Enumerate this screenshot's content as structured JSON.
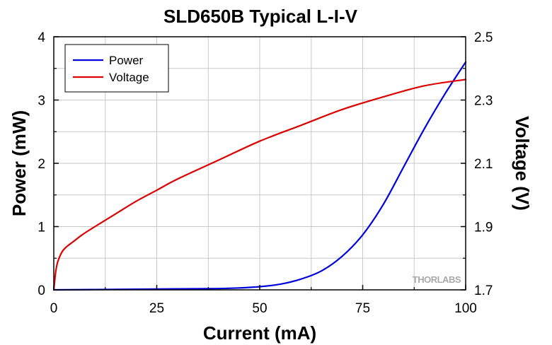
{
  "chart_data": {
    "type": "line",
    "title": "SLD650B Typical L-I-V",
    "xlabel": "Current (mA)",
    "ylabel_left": "Power (mW)",
    "ylabel_right": "Voltage (V)",
    "xlim": [
      0,
      100
    ],
    "ylim_left": [
      0,
      4
    ],
    "ylim_right": [
      1.7,
      2.5
    ],
    "x_ticks": [
      "0",
      "25",
      "50",
      "75",
      "100"
    ],
    "y_left_ticks": [
      "0",
      "1",
      "2",
      "3",
      "4"
    ],
    "y_right_ticks": [
      "1.7",
      "1.9",
      "2.1",
      "2.3",
      "2.5"
    ],
    "grid": true,
    "legend_position": "top-left",
    "series": [
      {
        "name": "Power",
        "axis": "left",
        "color": "#0000dd",
        "x": [
          0,
          10,
          20,
          30,
          40,
          45,
          50,
          55,
          60,
          65,
          70,
          75,
          80,
          85,
          90,
          95,
          100
        ],
        "y": [
          0,
          0.005,
          0.01,
          0.015,
          0.02,
          0.03,
          0.05,
          0.09,
          0.17,
          0.3,
          0.53,
          0.87,
          1.35,
          1.95,
          2.55,
          3.1,
          3.6
        ]
      },
      {
        "name": "Voltage",
        "axis": "right",
        "color": "#dd0000",
        "x": [
          0,
          0.5,
          1,
          2,
          3,
          5,
          7,
          10,
          15,
          20,
          25,
          30,
          40,
          50,
          60,
          70,
          80,
          90,
          100
        ],
        "y": [
          1.7,
          1.76,
          1.79,
          1.82,
          1.835,
          1.855,
          1.875,
          1.9,
          1.94,
          1.98,
          2.015,
          2.05,
          2.11,
          2.17,
          2.22,
          2.27,
          2.31,
          2.345,
          2.365
        ]
      }
    ]
  },
  "watermark": "THORLABS"
}
